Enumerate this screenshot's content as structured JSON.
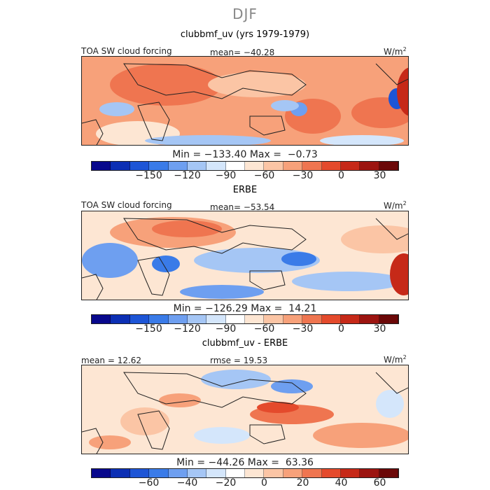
{
  "title": "DJF",
  "colors": [
    "#08088c",
    "#0c2fb4",
    "#1d55d6",
    "#3a7be8",
    "#6e9ff0",
    "#a5c6f5",
    "#d4e6fb",
    "#ffffff",
    "#fde6d3",
    "#fbc5a5",
    "#f7a17a",
    "#ef7550",
    "#e44a2c",
    "#c62918",
    "#9c1410",
    "#6b0808"
  ],
  "panels": [
    {
      "subtitle": "clubbmf_uv (yrs 1979-1979)",
      "left_label": "TOA SW cloud forcing",
      "center_label": "mean= −40.28",
      "units": "W/m",
      "units_exp": "2",
      "stats": "Min = −133.40 Max =  −0.73",
      "ticks": [
        "−150",
        "−120",
        "−90",
        "−60",
        "−30",
        "0",
        "30"
      ]
    },
    {
      "subtitle": "ERBE",
      "left_label": "TOA SW cloud forcing",
      "center_label": "mean= −53.54",
      "units": "W/m",
      "units_exp": "2",
      "stats": "Min = −126.29 Max =  14.21",
      "ticks": [
        "−150",
        "−120",
        "−90",
        "−60",
        "−30",
        "0",
        "30"
      ]
    },
    {
      "subtitle": "clubbmf_uv - ERBE",
      "left_label": "mean =  12.62",
      "center_label": "rmse =  19.53",
      "units": "W/m",
      "units_exp": "2",
      "stats": "Min = −44.26 Max =  63.36",
      "ticks": [
        "−60",
        "−40",
        "−20",
        "0",
        "20",
        "40",
        "60"
      ]
    }
  ]
}
